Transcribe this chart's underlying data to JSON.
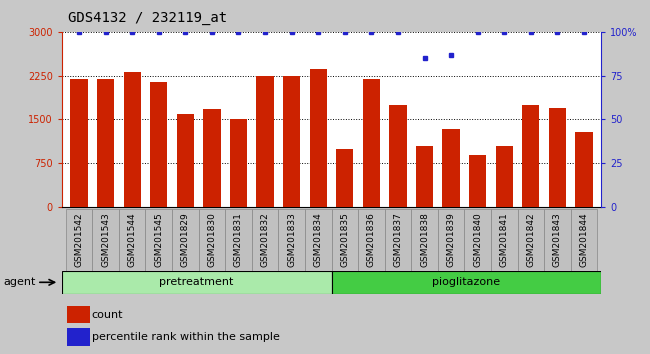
{
  "title": "GDS4132 / 232119_at",
  "categories": [
    "GSM201542",
    "GSM201543",
    "GSM201544",
    "GSM201545",
    "GSM201829",
    "GSM201830",
    "GSM201831",
    "GSM201832",
    "GSM201833",
    "GSM201834",
    "GSM201835",
    "GSM201836",
    "GSM201837",
    "GSM201838",
    "GSM201839",
    "GSM201840",
    "GSM201841",
    "GSM201842",
    "GSM201843",
    "GSM201844"
  ],
  "counts": [
    2200,
    2200,
    2310,
    2150,
    1600,
    1680,
    1500,
    2250,
    2250,
    2360,
    1000,
    2200,
    1740,
    1050,
    1340,
    890,
    1040,
    1750,
    1700,
    1290
  ],
  "percentiles": [
    100,
    100,
    100,
    100,
    100,
    100,
    100,
    100,
    100,
    100,
    100,
    100,
    100,
    85,
    87,
    100,
    100,
    100,
    100,
    100
  ],
  "bar_color": "#cc2200",
  "percentile_color": "#2222cc",
  "left_axis_color": "#cc2200",
  "right_axis_color": "#2222cc",
  "ylim_left": [
    0,
    3000
  ],
  "ylim_right": [
    0,
    100
  ],
  "yticks_left": [
    0,
    750,
    1500,
    2250,
    3000
  ],
  "ytick_labels_left": [
    "0",
    "750",
    "1500",
    "2250",
    "3000"
  ],
  "yticks_right": [
    0,
    25,
    50,
    75,
    100
  ],
  "ytick_labels_right": [
    "0",
    "25",
    "50",
    "75",
    "100%"
  ],
  "pretreatment_color": "#aaeaaa",
  "pioglitazone_color": "#44cc44",
  "agent_label": "agent",
  "pretreatment_label": "pretreatment",
  "pioglitazone_label": "pioglitazone",
  "legend_count": "count",
  "legend_percentile": "percentile rank within the sample",
  "fig_bg_color": "#c8c8c8",
  "plot_bg_color": "#ffffff",
  "xtick_bg_color": "#c0c0c0",
  "n_pretreatment": 10,
  "n_pioglitazone": 10
}
